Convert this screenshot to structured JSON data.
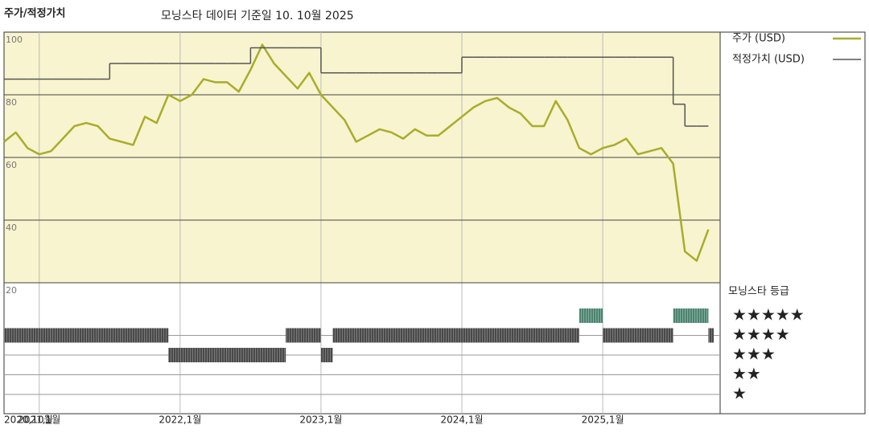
{
  "chart_data": {
    "type": "line",
    "title": "주가/적정가치",
    "subtitle": "모닝스타 데이터 기준일 10. 10월 2025",
    "x": [
      "2020-10",
      "2020-11",
      "2020-12",
      "2021-01",
      "2021-02",
      "2021-03",
      "2021-04",
      "2021-05",
      "2021-06",
      "2021-07",
      "2021-08",
      "2021-09",
      "2021-10",
      "2021-11",
      "2021-12",
      "2022-01",
      "2022-02",
      "2022-03",
      "2022-04",
      "2022-05",
      "2022-06",
      "2022-07",
      "2022-08",
      "2022-09",
      "2022-10",
      "2022-11",
      "2022-12",
      "2023-01",
      "2023-02",
      "2023-03",
      "2023-04",
      "2023-05",
      "2023-06",
      "2023-07",
      "2023-08",
      "2023-09",
      "2023-10",
      "2023-11",
      "2023-12",
      "2024-01",
      "2024-02",
      "2024-03",
      "2024-04",
      "2024-05",
      "2024-06",
      "2024-07",
      "2024-08",
      "2024-09",
      "2024-10",
      "2024-11",
      "2024-12",
      "2025-01",
      "2025-02",
      "2025-03",
      "2025-04",
      "2025-05",
      "2025-06",
      "2025-07",
      "2025-08",
      "2025-09",
      "2025-10"
    ],
    "xlim": [
      "2020-10",
      "2025-11"
    ],
    "xticks": [
      {
        "value": "2020-10",
        "label": "2020,10월"
      },
      {
        "value": "2021-01",
        "label": "2021,1월"
      },
      {
        "value": "2022-01",
        "label": "2022,1월"
      },
      {
        "value": "2023-01",
        "label": "2023,1월"
      },
      {
        "value": "2024-01",
        "label": "2024,1월"
      },
      {
        "value": "2025-01",
        "label": "2025,1월"
      }
    ],
    "ylim": [
      20,
      100
    ],
    "yticks": [
      20,
      40,
      60,
      80,
      100
    ],
    "grid": true,
    "series": [
      {
        "name": "주가 (USD)",
        "color": "#a9ac2c",
        "values": [
          65,
          68,
          63,
          61,
          62,
          66,
          70,
          71,
          70,
          66,
          65,
          64,
          73,
          71,
          80,
          78,
          80,
          85,
          84,
          84,
          81,
          88,
          96,
          90,
          86,
          82,
          87,
          80,
          76,
          72,
          65,
          67,
          69,
          68,
          66,
          69,
          67,
          67,
          70,
          73,
          76,
          78,
          79,
          76,
          74,
          70,
          70,
          78,
          72,
          63,
          61,
          63,
          64,
          66,
          61,
          62,
          63,
          58,
          30,
          27,
          37
        ]
      },
      {
        "name": "적정가치 (USD)",
        "color": "#555555",
        "step": true,
        "values": [
          85,
          85,
          85,
          85,
          85,
          85,
          85,
          85,
          85,
          90,
          90,
          90,
          90,
          90,
          90,
          90,
          90,
          90,
          90,
          90,
          90,
          95,
          95,
          95,
          95,
          95,
          95,
          87,
          87,
          87,
          87,
          87,
          87,
          87,
          87,
          87,
          87,
          87,
          87,
          92,
          92,
          92,
          92,
          92,
          92,
          92,
          92,
          92,
          92,
          92,
          92,
          92,
          92,
          92,
          92,
          92,
          92,
          77,
          70,
          70,
          70
        ]
      }
    ],
    "rating": {
      "title": "모닝스타 등급",
      "levels": [
        {
          "value": 5,
          "label": "★★★★★"
        },
        {
          "value": 4,
          "label": "★★★★"
        },
        {
          "value": 3,
          "label": "★★★"
        },
        {
          "value": 2,
          "label": "★★"
        },
        {
          "value": 1,
          "label": "★"
        }
      ],
      "top_color": "#3b8a6c",
      "color": "#333333",
      "values": [
        4,
        4,
        4,
        4,
        4,
        4,
        4,
        4,
        4,
        4,
        4,
        4,
        4,
        4,
        3,
        3,
        3,
        3,
        3,
        3,
        3,
        3,
        3,
        3,
        4,
        4,
        4,
        3,
        4,
        4,
        4,
        4,
        4,
        4,
        4,
        4,
        4,
        4,
        4,
        4,
        4,
        4,
        4,
        4,
        4,
        4,
        4,
        4,
        4,
        5,
        5,
        4,
        4,
        4,
        4,
        4,
        4,
        5,
        5,
        5,
        4
      ]
    }
  }
}
